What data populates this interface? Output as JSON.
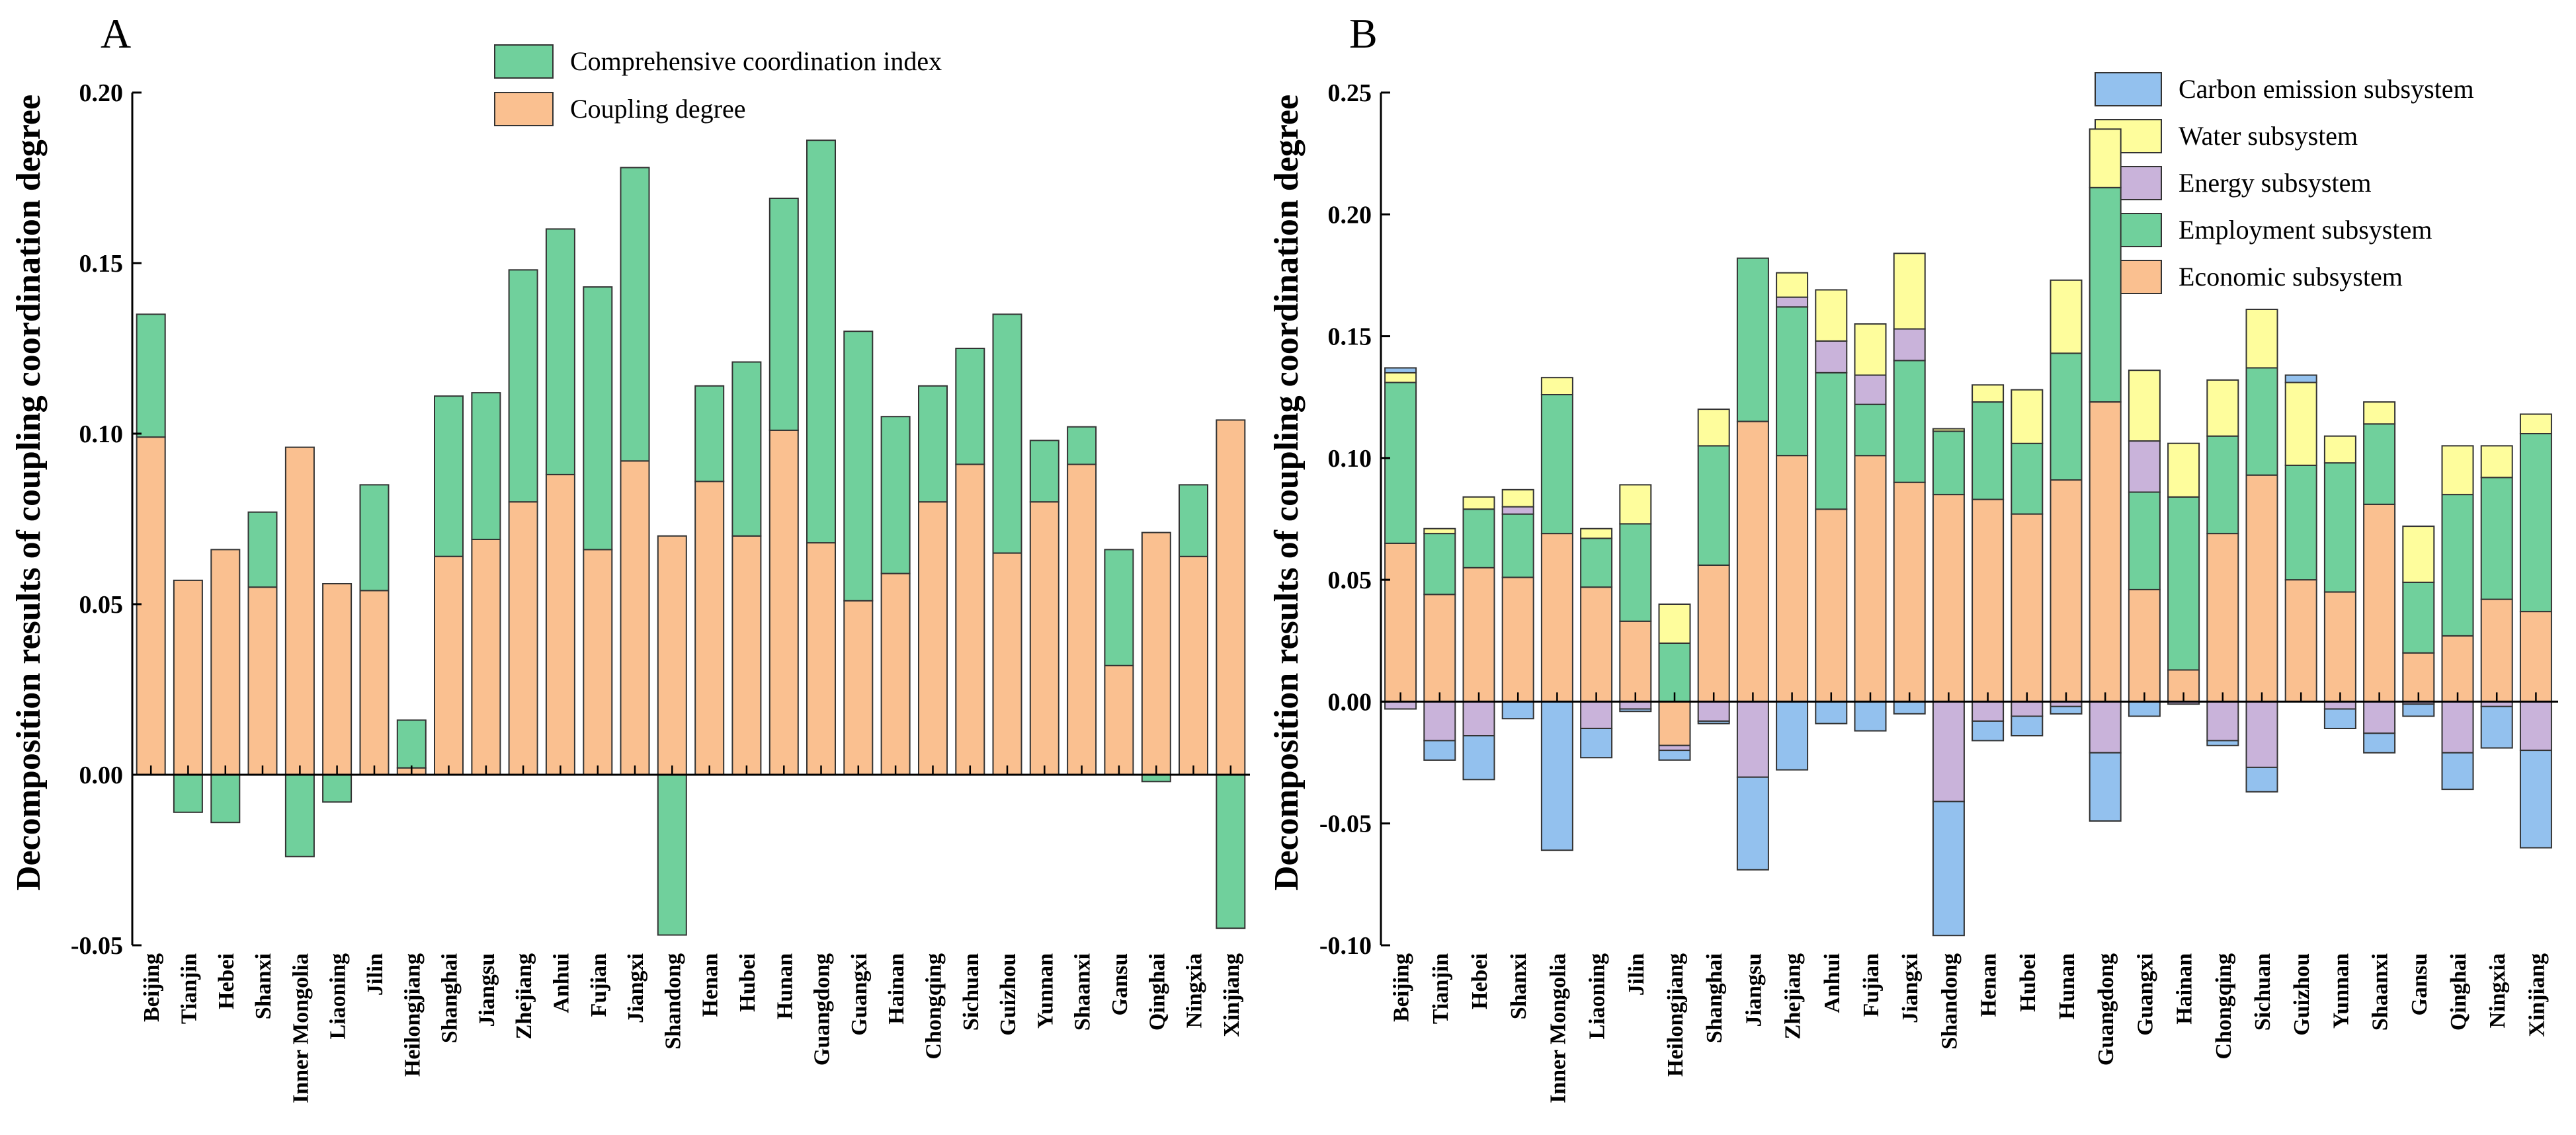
{
  "chart_data": [
    {
      "type": "bar",
      "stacked": true,
      "panel": "A",
      "title": "",
      "xlabel": "",
      "ylabel": "Decomposition results of coupling coordination degree",
      "ylim": [
        -0.05,
        0.2
      ],
      "yticks": [
        -0.05,
        0.0,
        0.05,
        0.1,
        0.15,
        0.2
      ],
      "ytick_labels": [
        "-0.05",
        "0.00",
        "0.05",
        "0.10",
        "0.15",
        "0.20"
      ],
      "legend_position": "top-center",
      "categories": [
        "Beijing",
        "Tianjin",
        "Hebei",
        "Shanxi",
        "Inner Mongolia",
        "Liaoning",
        "Jilin",
        "Heilongjiang",
        "Shanghai",
        "Jiangsu",
        "Zhejiang",
        "Anhui",
        "Fujian",
        "Jiangxi",
        "Shandong",
        "Henan",
        "Hubei",
        "Hunan",
        "Guangdong",
        "Guangxi",
        "Hainan",
        "Chongqing",
        "Sichuan",
        "Guizhou",
        "Yunnan",
        "Shaanxi",
        "Gansu",
        "Qinghai",
        "Ningxia",
        "Xinjiang"
      ],
      "series": [
        {
          "name": "Coupling degree",
          "color": "#FAC090",
          "values": [
            0.099,
            0.057,
            0.066,
            0.055,
            0.096,
            0.056,
            0.054,
            0.002,
            0.064,
            0.069,
            0.08,
            0.088,
            0.066,
            0.092,
            0.07,
            0.086,
            0.07,
            0.101,
            0.068,
            0.051,
            0.059,
            0.08,
            0.091,
            0.065,
            0.08,
            0.091,
            0.032,
            0.071,
            0.064,
            0.104
          ]
        },
        {
          "name": "Comprehensive coordination index",
          "color": "#70D09C",
          "values": [
            0.036,
            -0.011,
            -0.014,
            0.022,
            -0.024,
            -0.008,
            0.031,
            0.014,
            0.047,
            0.043,
            0.068,
            0.072,
            0.077,
            0.086,
            -0.047,
            0.028,
            0.051,
            0.068,
            0.118,
            0.079,
            0.046,
            0.034,
            0.034,
            0.07,
            0.018,
            0.011,
            0.034,
            -0.002,
            0.021,
            -0.045
          ]
        }
      ]
    },
    {
      "type": "bar",
      "stacked": true,
      "panel": "B",
      "title": "",
      "xlabel": "",
      "ylabel": "Decomposition results of coupling coordination degree",
      "ylim": [
        -0.1,
        0.25
      ],
      "yticks": [
        -0.1,
        -0.05,
        0.0,
        0.05,
        0.1,
        0.15,
        0.2,
        0.25
      ],
      "ytick_labels": [
        "-0.10",
        "-0.05",
        "0.00",
        "0.05",
        "0.10",
        "0.15",
        "0.20",
        "0.25"
      ],
      "legend_position": "top-right",
      "categories": [
        "Beijing",
        "Tianjin",
        "Hebei",
        "Shanxi",
        "Inner Mongolia",
        "Liaoning",
        "Jilin",
        "Heilongjiang",
        "Shanghai",
        "Jiangsu",
        "Zhejiang",
        "Anhui",
        "Fujian",
        "Jiangxi",
        "Shandong",
        "Henan",
        "Hubei",
        "Hunan",
        "Guangdong",
        "Guangxi",
        "Hainan",
        "Chongqing",
        "Sichuan",
        "Guizhou",
        "Yunnan",
        "Shaanxi",
        "Gansu",
        "Qinghai",
        "Ningxia",
        "Xinjiang"
      ],
      "legend_order": [
        "Carbon emission subsystem",
        "Water subsystem",
        "Energy subsystem",
        "Employment subsystem",
        "Economic subsystem"
      ],
      "series": [
        {
          "name": "Economic subsystem",
          "color": "#FAC090",
          "values": [
            0.065,
            0.044,
            0.055,
            0.051,
            0.069,
            0.047,
            0.033,
            -0.018,
            0.056,
            0.115,
            0.101,
            0.079,
            0.101,
            0.09,
            0.085,
            0.083,
            0.077,
            0.091,
            0.123,
            0.046,
            0.013,
            0.069,
            0.093,
            0.05,
            0.045,
            0.081,
            0.02,
            0.027,
            0.042,
            0.037
          ]
        },
        {
          "name": "Employment subsystem",
          "color": "#70D09C",
          "values": [
            0.066,
            0.025,
            0.024,
            0.026,
            0.057,
            0.02,
            0.04,
            0.024,
            0.049,
            0.067,
            0.061,
            0.056,
            0.021,
            0.05,
            0.026,
            0.04,
            0.029,
            0.052,
            0.088,
            0.04,
            0.071,
            0.04,
            0.044,
            0.047,
            0.053,
            0.033,
            0.029,
            0.058,
            0.05,
            0.073
          ]
        },
        {
          "name": "Energy subsystem",
          "color": "#C9B3DA",
          "values": [
            -0.003,
            -0.016,
            -0.014,
            0.003,
            0.0,
            -0.011,
            -0.003,
            -0.002,
            -0.008,
            -0.031,
            0.004,
            0.013,
            0.012,
            0.013,
            -0.041,
            -0.008,
            -0.006,
            -0.002,
            -0.021,
            0.021,
            -0.001,
            -0.016,
            -0.027,
            0.0,
            -0.003,
            -0.013,
            -0.001,
            -0.021,
            -0.002,
            -0.02
          ]
        },
        {
          "name": "Water subsystem",
          "color": "#FEFD9C",
          "values": [
            0.004,
            0.002,
            0.005,
            0.007,
            0.007,
            0.004,
            0.016,
            0.016,
            0.015,
            0.0,
            0.01,
            0.021,
            0.021,
            0.031,
            0.001,
            0.007,
            0.022,
            0.03,
            0.024,
            0.029,
            0.022,
            0.023,
            0.024,
            0.034,
            0.011,
            0.009,
            0.023,
            0.02,
            0.013,
            0.008
          ]
        },
        {
          "name": "Carbon emission subsystem",
          "color": "#93C1EE",
          "values": [
            0.002,
            -0.008,
            -0.018,
            -0.007,
            -0.061,
            -0.012,
            -0.001,
            -0.004,
            -0.001,
            -0.038,
            -0.028,
            -0.009,
            -0.012,
            -0.005,
            -0.055,
            -0.008,
            -0.008,
            -0.003,
            -0.028,
            -0.006,
            0.0,
            -0.002,
            -0.01,
            0.003,
            -0.008,
            -0.008,
            -0.005,
            -0.015,
            -0.017,
            -0.04
          ]
        }
      ]
    }
  ]
}
